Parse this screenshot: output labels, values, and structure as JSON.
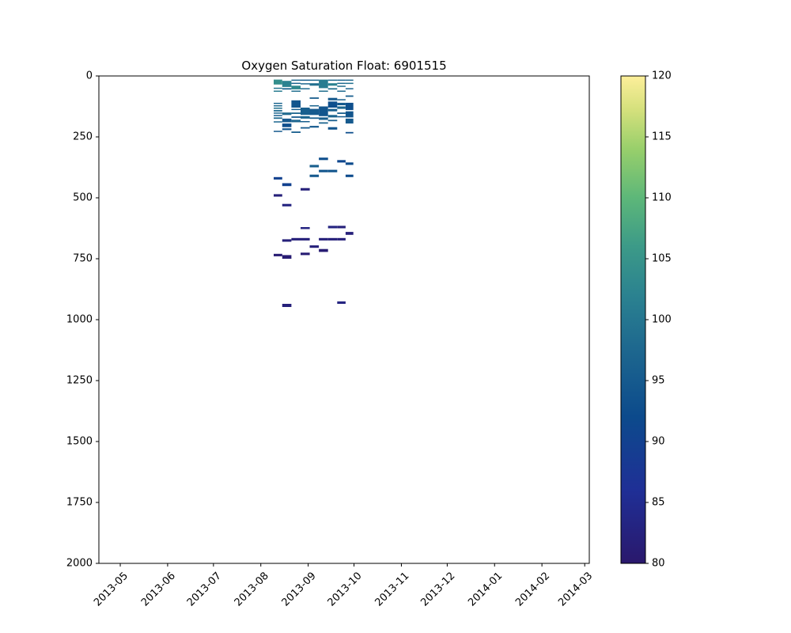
{
  "chart_data": {
    "type": "heatmap",
    "title": "Oxygen Saturation Float: 6901515",
    "xlabel": "",
    "ylabel": "",
    "x_axis": {
      "type": "date",
      "range": [
        "2013-04-17",
        "2014-03-04"
      ],
      "ticks": [
        "2013-05",
        "2013-06",
        "2013-07",
        "2013-08",
        "2013-09",
        "2013-10",
        "2013-11",
        "2013-12",
        "2014-01",
        "2014-02",
        "2014-03"
      ]
    },
    "y_axis": {
      "range": [
        0,
        2000
      ],
      "inverted": true,
      "ticks": [
        0,
        250,
        500,
        750,
        1000,
        1250,
        1500,
        1750,
        2000
      ]
    },
    "colorbar": {
      "colormap": "haline",
      "range": [
        80,
        120
      ],
      "ticks": [
        80,
        85,
        90,
        95,
        100,
        105,
        110,
        115,
        120
      ]
    },
    "grid": false,
    "legend": "none",
    "profiles": [
      {
        "date": "2013-08-12",
        "cells": [
          {
            "depth": [
              15,
              35
            ],
            "value": 104
          },
          {
            "depth": [
              48,
              52
            ],
            "value": 100
          },
          {
            "depth": [
              60,
              64
            ],
            "value": 101
          },
          {
            "depth": [
              110,
              114
            ],
            "value": 97
          },
          {
            "depth": [
              120,
              124
            ],
            "value": 98
          },
          {
            "depth": [
              130,
              134
            ],
            "value": 99
          },
          {
            "depth": [
              140,
              146
            ],
            "value": 98
          },
          {
            "depth": [
              150,
              154
            ],
            "value": 97
          },
          {
            "depth": [
              160,
              164
            ],
            "value": 96
          },
          {
            "depth": [
              170,
              176
            ],
            "value": 98
          },
          {
            "depth": [
              186,
              190
            ],
            "value": 97
          },
          {
            "depth": [
              225,
              230
            ],
            "value": 95
          },
          {
            "depth": [
              415,
              425
            ],
            "value": 90
          },
          {
            "depth": [
              485,
              495
            ],
            "value": 82
          },
          {
            "depth": [
              730,
              740
            ],
            "value": 81
          }
        ]
      },
      {
        "date": "2013-08-18",
        "cells": [
          {
            "depth": [
              20,
              45
            ],
            "value": 102
          },
          {
            "depth": [
              50,
              56
            ],
            "value": 97
          },
          {
            "depth": [
              150,
              160
            ],
            "value": 98
          },
          {
            "depth": [
              175,
              190
            ],
            "value": 95
          },
          {
            "depth": [
              195,
              210
            ],
            "value": 93
          },
          {
            "depth": [
              215,
              222
            ],
            "value": 94
          },
          {
            "depth": [
              440,
              452
            ],
            "value": 90
          },
          {
            "depth": [
              525,
              535
            ],
            "value": 83
          },
          {
            "depth": [
              670,
              680
            ],
            "value": 82
          },
          {
            "depth": [
              735,
              750
            ],
            "value": 81
          },
          {
            "depth": [
              935,
              948
            ],
            "value": 82
          }
        ]
      },
      {
        "date": "2013-08-24",
        "cells": [
          {
            "depth": [
              15,
              20
            ],
            "value": 98
          },
          {
            "depth": [
              28,
              33
            ],
            "value": 97
          },
          {
            "depth": [
              40,
              55
            ],
            "value": 103
          },
          {
            "depth": [
              60,
              64
            ],
            "value": 99
          },
          {
            "depth": [
              100,
              130
            ],
            "value": 94
          },
          {
            "depth": [
              135,
              140
            ],
            "value": 96
          },
          {
            "depth": [
              150,
              156
            ],
            "value": 97
          },
          {
            "depth": [
              166,
              172
            ],
            "value": 95
          },
          {
            "depth": [
              180,
              190
            ],
            "value": 97
          },
          {
            "depth": [
              228,
              234
            ],
            "value": 96
          },
          {
            "depth": [
              665,
              675
            ],
            "value": 82
          }
        ]
      },
      {
        "date": "2013-08-30",
        "cells": [
          {
            "depth": [
              15,
              20
            ],
            "value": 96
          },
          {
            "depth": [
              30,
              35
            ],
            "value": 97
          },
          {
            "depth": [
              50,
              55
            ],
            "value": 98
          },
          {
            "depth": [
              130,
              160
            ],
            "value": 96
          },
          {
            "depth": [
              165,
              175
            ],
            "value": 97
          },
          {
            "depth": [
              185,
              190
            ],
            "value": 96
          },
          {
            "depth": [
              210,
              216
            ],
            "value": 95
          },
          {
            "depth": [
              460,
              470
            ],
            "value": 82
          },
          {
            "depth": [
              620,
              628
            ],
            "value": 83
          },
          {
            "depth": [
              665,
              675
            ],
            "value": 82
          },
          {
            "depth": [
              725,
              735
            ],
            "value": 81
          }
        ]
      },
      {
        "date": "2013-09-05",
        "cells": [
          {
            "depth": [
              15,
              20
            ],
            "value": 98
          },
          {
            "depth": [
              30,
              40
            ],
            "value": 99
          },
          {
            "depth": [
              88,
              94
            ],
            "value": 96
          },
          {
            "depth": [
              120,
              124
            ],
            "value": 97
          },
          {
            "depth": [
              135,
              160
            ],
            "value": 95
          },
          {
            "depth": [
              170,
              176
            ],
            "value": 96
          },
          {
            "depth": [
              205,
              212
            ],
            "value": 95
          },
          {
            "depth": [
              365,
              375
            ],
            "value": 96
          },
          {
            "depth": [
              405,
              415
            ],
            "value": 95
          },
          {
            "depth": [
              695,
              705
            ],
            "value": 82
          }
        ]
      },
      {
        "date": "2013-09-11",
        "cells": [
          {
            "depth": [
              15,
              50
            ],
            "value": 101
          },
          {
            "depth": [
              60,
              65
            ],
            "value": 99
          },
          {
            "depth": [
              125,
              165
            ],
            "value": 94
          },
          {
            "depth": [
              170,
              180
            ],
            "value": 96
          },
          {
            "depth": [
              190,
              196
            ],
            "value": 97
          },
          {
            "depth": [
              335,
              345
            ],
            "value": 93
          },
          {
            "depth": [
              385,
              395
            ],
            "value": 94
          },
          {
            "depth": [
              665,
              675
            ],
            "value": 82
          },
          {
            "depth": [
              710,
              722
            ],
            "value": 81
          }
        ]
      },
      {
        "date": "2013-09-17",
        "cells": [
          {
            "depth": [
              15,
              20
            ],
            "value": 98
          },
          {
            "depth": [
              30,
              40
            ],
            "value": 102
          },
          {
            "depth": [
              50,
              56
            ],
            "value": 99
          },
          {
            "depth": [
              90,
              100
            ],
            "value": 95
          },
          {
            "depth": [
              105,
              130
            ],
            "value": 93
          },
          {
            "depth": [
              135,
              145
            ],
            "value": 96
          },
          {
            "depth": [
              160,
              170
            ],
            "value": 97
          },
          {
            "depth": [
              180,
              186
            ],
            "value": 96
          },
          {
            "depth": [
              210,
              220
            ],
            "value": 94
          },
          {
            "depth": [
              385,
              395
            ],
            "value": 94
          },
          {
            "depth": [
              615,
              625
            ],
            "value": 83
          },
          {
            "depth": [
              665,
              675
            ],
            "value": 82
          }
        ]
      },
      {
        "date": "2013-09-23",
        "cells": [
          {
            "depth": [
              15,
              20
            ],
            "value": 97
          },
          {
            "depth": [
              28,
              32
            ],
            "value": 98
          },
          {
            "depth": [
              40,
              45
            ],
            "value": 99
          },
          {
            "depth": [
              60,
              65
            ],
            "value": 98
          },
          {
            "depth": [
              95,
              100
            ],
            "value": 96
          },
          {
            "depth": [
              110,
              120
            ],
            "value": 95
          },
          {
            "depth": [
              125,
              135
            ],
            "value": 97
          },
          {
            "depth": [
              150,
              156
            ],
            "value": 96
          },
          {
            "depth": [
              165,
              170
            ],
            "value": 95
          },
          {
            "depth": [
              345,
              355
            ],
            "value": 91
          },
          {
            "depth": [
              615,
              625
            ],
            "value": 82
          },
          {
            "depth": [
              665,
              675
            ],
            "value": 82
          },
          {
            "depth": [
              925,
              935
            ],
            "value": 83
          }
        ]
      },
      {
        "date": "2013-09-28",
        "cells": [
          {
            "depth": [
              15,
              20
            ],
            "value": 98
          },
          {
            "depth": [
              28,
              33
            ],
            "value": 99
          },
          {
            "depth": [
              50,
              55
            ],
            "value": 97
          },
          {
            "depth": [
              80,
              86
            ],
            "value": 96
          },
          {
            "depth": [
              110,
              140
            ],
            "value": 93
          },
          {
            "depth": [
              145,
              170
            ],
            "value": 94
          },
          {
            "depth": [
              175,
              195
            ],
            "value": 95
          },
          {
            "depth": [
              230,
              236
            ],
            "value": 93
          },
          {
            "depth": [
              355,
              365
            ],
            "value": 92
          },
          {
            "depth": [
              405,
              415
            ],
            "value": 92
          },
          {
            "depth": [
              640,
              652
            ],
            "value": 82
          }
        ]
      }
    ]
  }
}
